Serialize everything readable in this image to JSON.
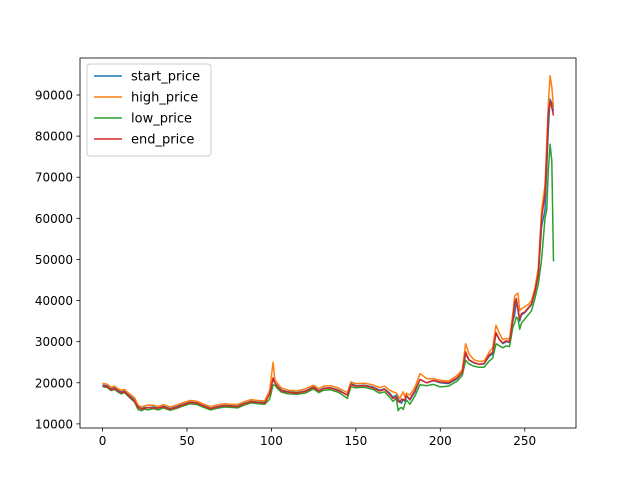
{
  "chart_data": {
    "type": "line",
    "title": "",
    "xlabel": "",
    "ylabel": "",
    "xlim": [
      -13.35,
      280.35
    ],
    "ylim": [
      9000,
      99000
    ],
    "xticks": [
      0,
      50,
      100,
      150,
      200,
      250
    ],
    "yticks": [
      10000,
      20000,
      30000,
      40000,
      50000,
      60000,
      70000,
      80000,
      90000
    ],
    "grid": false,
    "legend_position": "top-left",
    "x": [
      0,
      3,
      5,
      7,
      9,
      11,
      13,
      15,
      17,
      19,
      21,
      23,
      25,
      27,
      30,
      33,
      36,
      40,
      44,
      48,
      52,
      56,
      60,
      64,
      68,
      72,
      76,
      80,
      84,
      88,
      92,
      96,
      99,
      101,
      102,
      104,
      106,
      110,
      115,
      120,
      125,
      128,
      131,
      135,
      140,
      145,
      147,
      150,
      155,
      160,
      164,
      167,
      170,
      172,
      174,
      175,
      176,
      177,
      178,
      179,
      180,
      182,
      185,
      188,
      192,
      196,
      200,
      205,
      210,
      213,
      215,
      217,
      220,
      223,
      226,
      229,
      231,
      233,
      235,
      237,
      239,
      241,
      243,
      244,
      245,
      246,
      247,
      248,
      250,
      252,
      254,
      256,
      258,
      260,
      262,
      263,
      264,
      265,
      266,
      267
    ],
    "series": [
      {
        "name": "start_price",
        "color": "#1f77b4",
        "values": [
          19500,
          19200,
          18500,
          18800,
          18200,
          17800,
          18000,
          17200,
          16500,
          15800,
          14200,
          13700,
          14000,
          13900,
          14100,
          13800,
          14300,
          13700,
          14200,
          14800,
          15300,
          15100,
          14400,
          13800,
          14200,
          14500,
          14400,
          14300,
          15000,
          15500,
          15300,
          15200,
          17500,
          21000,
          20000,
          19000,
          18200,
          17800,
          17600,
          18000,
          19000,
          18100,
          18700,
          18800,
          18200,
          17000,
          19800,
          19300,
          19400,
          19000,
          18200,
          18500,
          17500,
          16500,
          17000,
          16000,
          15500,
          15000,
          16000,
          15500,
          16800,
          15800,
          17800,
          20800,
          20000,
          20500,
          20000,
          19800,
          21000,
          22500,
          27000,
          25500,
          24800,
          24500,
          24600,
          26500,
          27000,
          32000,
          30500,
          29500,
          30000,
          29800,
          35000,
          36500,
          40000,
          37500,
          35000,
          36500,
          37000,
          38000,
          39000,
          42000,
          46000,
          58000,
          62000,
          72000,
          82000,
          89000,
          88000,
          86000
        ]
      },
      {
        "name": "high_price",
        "color": "#ff7f0e",
        "values": [
          19900,
          19600,
          18900,
          19200,
          18600,
          18200,
          18400,
          17600,
          17000,
          16300,
          14600,
          14100,
          14400,
          14600,
          14500,
          14200,
          14700,
          14100,
          14600,
          15200,
          15700,
          15500,
          14800,
          14200,
          14600,
          14900,
          14800,
          14700,
          15400,
          15900,
          15700,
          15600,
          18200,
          25000,
          20800,
          19600,
          18700,
          18200,
          18000,
          18500,
          19400,
          18600,
          19200,
          19300,
          18700,
          17600,
          20200,
          19800,
          19900,
          19500,
          18800,
          19200,
          18200,
          17800,
          17500,
          16800,
          16200,
          17000,
          17800,
          16600,
          17500,
          17000,
          19000,
          22200,
          21000,
          21000,
          20600,
          20400,
          21800,
          23200,
          29500,
          27000,
          25600,
          25200,
          25300,
          27500,
          28500,
          34000,
          32000,
          30500,
          30800,
          30600,
          37000,
          41000,
          41500,
          41800,
          37500,
          38000,
          38500,
          39000,
          40000,
          43000,
          48000,
          62000,
          68000,
          78000,
          88000,
          94700,
          92000,
          87000
        ]
      },
      {
        "name": "low_price",
        "color": "#2ca02c",
        "values": [
          19100,
          18800,
          18100,
          18400,
          17800,
          17300,
          17600,
          16800,
          16000,
          15300,
          13500,
          13200,
          13600,
          13400,
          13700,
          13400,
          13900,
          13300,
          13800,
          14400,
          14900,
          14700,
          14000,
          13400,
          13800,
          14100,
          14000,
          13900,
          14600,
          15100,
          14900,
          14800,
          16000,
          19500,
          19400,
          18400,
          17700,
          17300,
          17200,
          17500,
          18500,
          17600,
          18200,
          18300,
          17600,
          16200,
          19000,
          18800,
          18900,
          18400,
          17500,
          17800,
          16500,
          15500,
          16200,
          13200,
          13800,
          14000,
          13500,
          14800,
          15800,
          14800,
          16800,
          19500,
          19300,
          19600,
          19000,
          19200,
          20400,
          21800,
          25500,
          24600,
          24000,
          23800,
          23800,
          25300,
          26000,
          29500,
          29000,
          28500,
          29000,
          28800,
          33500,
          34500,
          36000,
          35500,
          33000,
          34500,
          35500,
          36500,
          37500,
          40500,
          44000,
          50000,
          60000,
          62000,
          72000,
          78000,
          74000,
          49500
        ]
      },
      {
        "name": "end_price",
        "color": "#d62728",
        "values": [
          19300,
          19000,
          18300,
          18600,
          18000,
          17600,
          17800,
          17000,
          16200,
          15500,
          14000,
          13600,
          13800,
          14000,
          13800,
          13900,
          14100,
          13600,
          14000,
          14700,
          15200,
          15000,
          14300,
          13700,
          14100,
          14400,
          14300,
          14200,
          14900,
          15400,
          15200,
          15100,
          17200,
          21200,
          20000,
          18900,
          18000,
          17700,
          17500,
          17900,
          18900,
          18000,
          18600,
          18700,
          18000,
          17000,
          19500,
          19200,
          19300,
          18800,
          18000,
          18400,
          17200,
          16200,
          16500,
          15500,
          15200,
          16000,
          15800,
          15800,
          16900,
          16000,
          18200,
          20800,
          20000,
          20600,
          20200,
          20000,
          21200,
          22600,
          27500,
          25600,
          24900,
          24500,
          24700,
          26800,
          27400,
          32200,
          30500,
          29700,
          30200,
          30000,
          35500,
          39500,
          40500,
          38000,
          35500,
          36800,
          37200,
          38200,
          39200,
          42200,
          46500,
          60000,
          66000,
          75000,
          86000,
          88500,
          87000,
          85000
        ]
      }
    ]
  }
}
